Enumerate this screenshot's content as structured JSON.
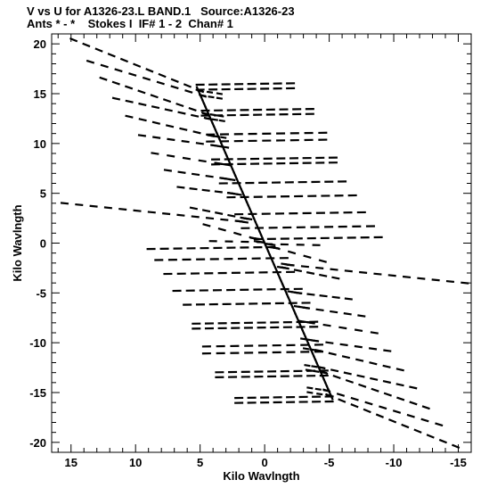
{
  "header": {
    "line1": "V vs U for A1326-23.L BAND.1   Source:A1326-23",
    "line2": "Ants * - *    Stokes I  IF# 1 - 2  Chan# 1"
  },
  "chart_data": {
    "type": "scatter",
    "title": "V vs U for A1326-23.L BAND.1   Source:A1326-23",
    "subtitle": "Ants * - *    Stokes I  IF# 1 - 2  Chan# 1",
    "xlabel": "Kilo Wavlngth",
    "ylabel": "Kilo Wavlngth",
    "xlim": [
      16.5,
      -16
    ],
    "ylim": [
      -21,
      21
    ],
    "xticks": [
      15,
      10,
      5,
      0,
      -5,
      -10,
      -15
    ],
    "xtick_labels": [
      "15",
      "10",
      "5",
      "0",
      "-5",
      "-10",
      "-15"
    ],
    "yticks": [
      -20,
      -15,
      -10,
      -5,
      0,
      5,
      10,
      15,
      20
    ],
    "ytick_labels": [
      "-20",
      "-15",
      "-10",
      "-5",
      "0",
      "5",
      "10",
      "15",
      "20"
    ],
    "grid": false,
    "color": "#000000",
    "tracks": [
      {
        "u0": 14.8,
        "v0": 20.4,
        "u1": 5.0,
        "v1": 15.3,
        "tail": -1.5
      },
      {
        "u0": 13.5,
        "v0": 18.2,
        "u1": 4.8,
        "v1": 14.8,
        "tail": -1.3
      },
      {
        "u0": 12.5,
        "v0": 16.5,
        "u1": 4.6,
        "v1": 13.0,
        "tail": -1.2
      },
      {
        "u0": 11.5,
        "v0": 14.5,
        "u1": 4.4,
        "v1": 12.5,
        "tail": -1.1
      },
      {
        "u0": 10.5,
        "v0": 12.7,
        "u1": 4.2,
        "v1": 10.8,
        "tail": -1.0
      },
      {
        "u0": 9.5,
        "v0": 10.8,
        "u1": 3.9,
        "v1": 9.8,
        "tail": -0.9
      },
      {
        "u0": 8.5,
        "v0": 9.0,
        "u1": 3.6,
        "v1": 8.0,
        "tail": -0.8
      },
      {
        "u0": 7.5,
        "v0": 7.3,
        "u1": 3.2,
        "v1": 6.5,
        "tail": -0.7
      },
      {
        "u0": 6.5,
        "v0": 5.6,
        "u1": 2.6,
        "v1": 5.0,
        "tail": -0.6
      },
      {
        "u0": 15.5,
        "v0": 4.0,
        "u1": 2.0,
        "v1": 2.2,
        "tail": -0.5
      },
      {
        "u0": 5.5,
        "v0": 3.5,
        "u1": 1.6,
        "v1": 2.5,
        "tail": -0.4
      },
      {
        "u0": 4.5,
        "v0": 1.8,
        "u1": 0.9,
        "v1": 0.5,
        "tail": -0.3
      },
      {
        "u0": 4.0,
        "v0": 0.2,
        "u1": 0.3,
        "v1": 0.1,
        "tail": 0.3
      },
      {
        "u0": -4.0,
        "v0": -0.2,
        "u1": -0.3,
        "v1": -0.1,
        "tail": -0.3
      },
      {
        "u0": -4.5,
        "v0": -1.8,
        "u1": -0.9,
        "v1": -0.5,
        "tail": 0.3
      },
      {
        "u0": -5.5,
        "v0": -3.5,
        "u1": -1.6,
        "v1": -2.5,
        "tail": 0.4
      },
      {
        "u0": -15.5,
        "v0": -4.0,
        "u1": -2.0,
        "v1": -2.2,
        "tail": 0.5
      },
      {
        "u0": -6.5,
        "v0": -5.6,
        "u1": -2.6,
        "v1": -5.0,
        "tail": 0.6
      },
      {
        "u0": -7.5,
        "v0": -7.3,
        "u1": -3.2,
        "v1": -6.5,
        "tail": 0.7
      },
      {
        "u0": -8.5,
        "v0": -9.0,
        "u1": -3.6,
        "v1": -8.0,
        "tail": 0.8
      },
      {
        "u0": -9.5,
        "v0": -10.8,
        "u1": -3.9,
        "v1": -9.8,
        "tail": 0.9
      },
      {
        "u0": -10.5,
        "v0": -12.7,
        "u1": -4.2,
        "v1": -10.8,
        "tail": 1.0
      },
      {
        "u0": -11.5,
        "v0": -14.5,
        "u1": -4.4,
        "v1": -12.5,
        "tail": 1.1
      },
      {
        "u0": -12.5,
        "v0": -16.5,
        "u1": -4.6,
        "v1": -13.0,
        "tail": 1.2
      },
      {
        "u0": -13.5,
        "v0": -18.2,
        "u1": -4.8,
        "v1": -14.8,
        "tail": 1.3
      },
      {
        "u0": -14.8,
        "v0": -20.4,
        "u1": -5.0,
        "v1": -15.3,
        "tail": 1.5
      }
    ],
    "right_segments": [
      {
        "u0": 5.0,
        "u1": -2.0,
        "v": 15.9
      },
      {
        "u0": 5.0,
        "u1": -2.0,
        "v": 15.4
      },
      {
        "u0": 4.6,
        "u1": -3.5,
        "v": 13.3
      },
      {
        "u0": 4.6,
        "u1": -3.5,
        "v": 12.8
      },
      {
        "u0": 4.2,
        "u1": -4.5,
        "v": 10.9
      },
      {
        "u0": 4.2,
        "u1": -4.5,
        "v": 10.2
      },
      {
        "u0": 3.8,
        "u1": -5.3,
        "v": 8.4
      },
      {
        "u0": 3.8,
        "u1": -5.3,
        "v": 7.9
      },
      {
        "u0": 3.2,
        "u1": -6.0,
        "v": 6.0
      },
      {
        "u0": 2.6,
        "u1": -6.8,
        "v": 4.6
      },
      {
        "u0": 2.0,
        "u1": -7.5,
        "v": 2.9
      },
      {
        "u0": 1.5,
        "u1": -8.2,
        "v": 1.5
      },
      {
        "u0": 0.5,
        "u1": -8.8,
        "v": 0.4
      }
    ],
    "left_segments": [
      {
        "u0": -5.0,
        "u1": 2.0,
        "v": -15.9
      },
      {
        "u0": -5.0,
        "u1": 2.0,
        "v": -15.4
      },
      {
        "u0": -4.6,
        "u1": 3.5,
        "v": -13.3
      },
      {
        "u0": -4.6,
        "u1": 3.5,
        "v": -12.8
      },
      {
        "u0": -4.2,
        "u1": 4.5,
        "v": -10.9
      },
      {
        "u0": -4.2,
        "u1": 4.5,
        "v": -10.2
      },
      {
        "u0": -3.8,
        "u1": 5.3,
        "v": -8.4
      },
      {
        "u0": -3.8,
        "u1": 5.3,
        "v": -7.9
      },
      {
        "u0": -3.2,
        "u1": 6.0,
        "v": -6.0
      },
      {
        "u0": -2.6,
        "u1": 6.8,
        "v": -4.6
      },
      {
        "u0": -2.0,
        "u1": 7.5,
        "v": -2.9
      },
      {
        "u0": -1.5,
        "u1": 8.2,
        "v": -1.5
      },
      {
        "u0": -0.5,
        "u1": 8.8,
        "v": -0.4
      }
    ],
    "central_ridge": {
      "u0": 5.2,
      "v0": 15.5,
      "u1": -5.2,
      "v1": -15.5
    }
  }
}
